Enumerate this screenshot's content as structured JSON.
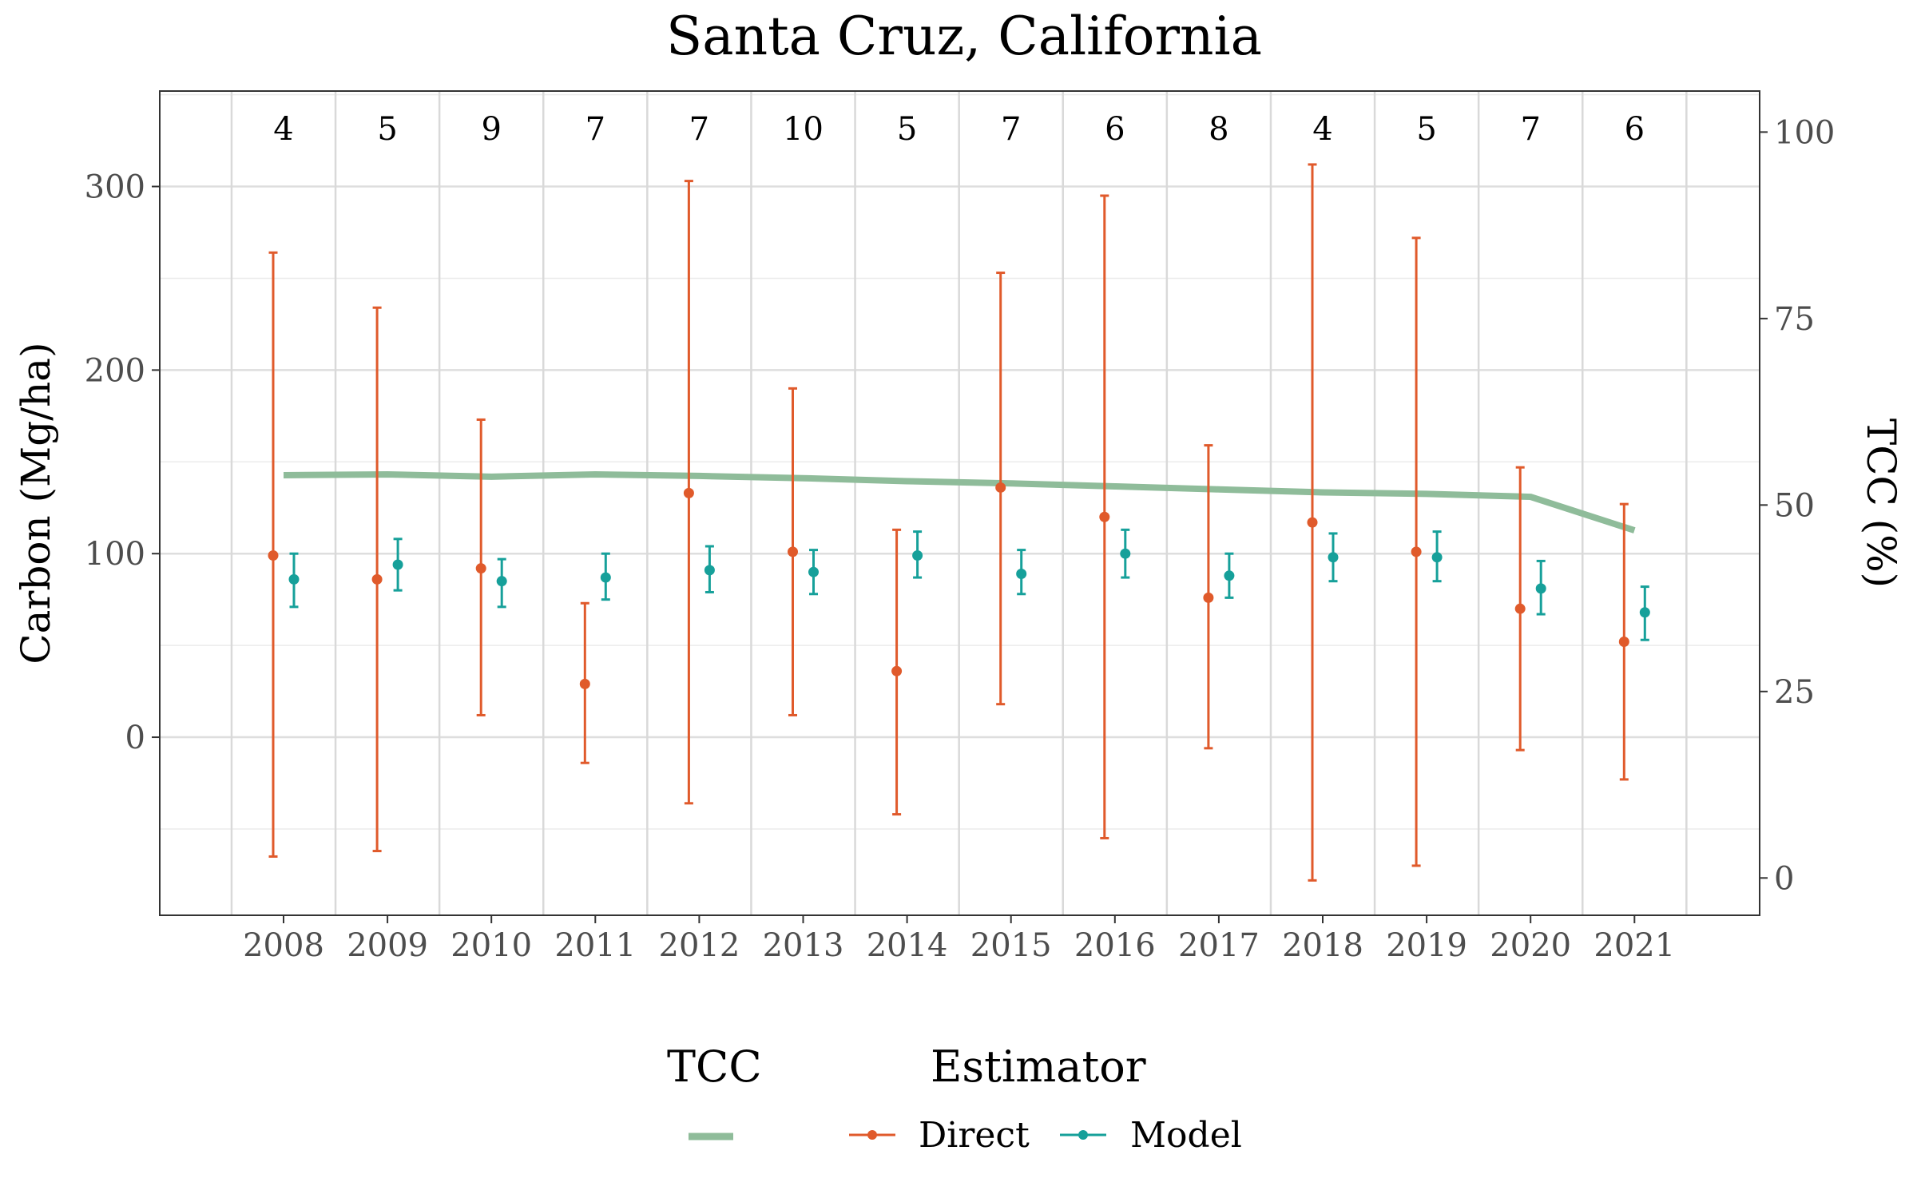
{
  "chart_data": {
    "type": "line",
    "title": "Santa Cruz, California",
    "ylabel": "Carbon (Mg/ha)",
    "y2label": "TCC (%)",
    "xlabel": "",
    "ylim": [
      -97,
      352
    ],
    "y2lim": [
      -5,
      105.5
    ],
    "yticks": [
      0,
      100,
      200,
      300
    ],
    "y2ticks": [
      0,
      25,
      50,
      75,
      100
    ],
    "grid": true,
    "legend_position": "bottom",
    "years": [
      2008,
      2009,
      2010,
      2011,
      2012,
      2013,
      2014,
      2015,
      2016,
      2017,
      2018,
      2019,
      2020,
      2021
    ],
    "counts": [
      4,
      5,
      9,
      7,
      7,
      10,
      5,
      7,
      6,
      8,
      4,
      5,
      7,
      6
    ],
    "tcc": {
      "name": "TCC",
      "color": "#8fbc9a",
      "values": [
        54.0,
        54.1,
        53.8,
        54.1,
        53.9,
        53.6,
        53.2,
        52.9,
        52.5,
        52.1,
        51.7,
        51.5,
        51.1,
        46.6
      ]
    },
    "series": [
      {
        "name": "Direct",
        "color": "#e05a2b",
        "estimate": [
          99,
          86,
          92,
          29,
          133,
          101,
          36,
          136,
          120,
          76,
          117,
          101,
          70,
          52
        ],
        "lower": [
          -65,
          -62,
          12,
          -14,
          -36,
          12,
          -42,
          18,
          -55,
          -6,
          -78,
          -70,
          -7,
          -23
        ],
        "upper": [
          264,
          234,
          173,
          73,
          303,
          190,
          113,
          253,
          295,
          159,
          312,
          272,
          147,
          127
        ]
      },
      {
        "name": "Model",
        "color": "#16a09a",
        "estimate": [
          86,
          94,
          85,
          87,
          91,
          90,
          99,
          89,
          100,
          88,
          98,
          98,
          81,
          68
        ],
        "lower": [
          71,
          80,
          71,
          75,
          79,
          78,
          87,
          78,
          87,
          76,
          85,
          85,
          67,
          53
        ],
        "upper": [
          100,
          108,
          97,
          100,
          104,
          102,
          112,
          102,
          113,
          100,
          111,
          112,
          96,
          82
        ]
      }
    ]
  },
  "legend": {
    "tcc_title": "TCC",
    "estimator_title": "Estimator",
    "direct_label": "Direct",
    "model_label": "Model"
  }
}
